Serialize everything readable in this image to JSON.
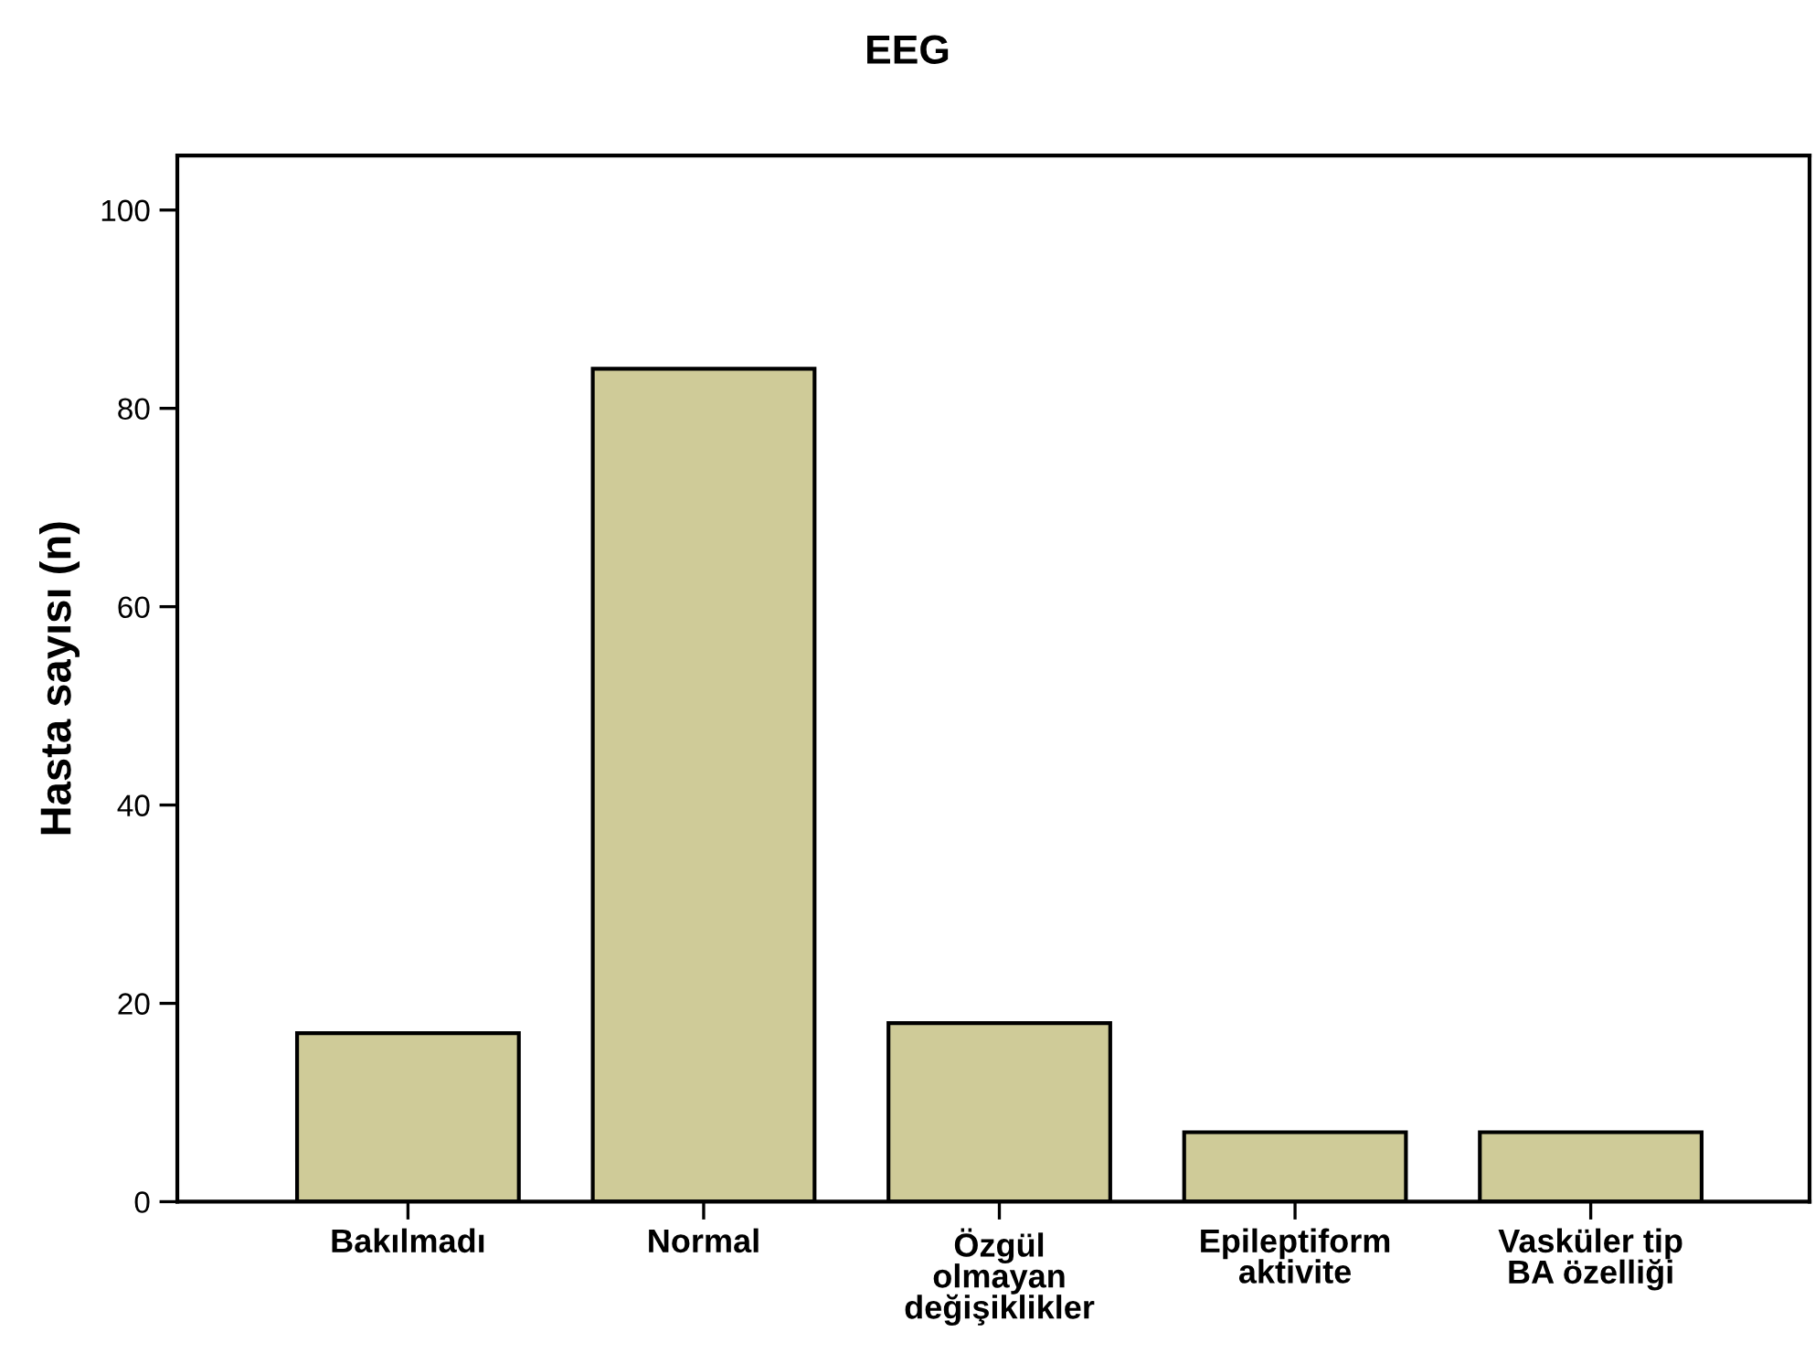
{
  "chart_data": {
    "type": "bar",
    "title": "EEG",
    "ylabel": "Hasta sayısı (n)",
    "categories": [
      "Bakılmadı",
      "Normal",
      "Özgül\nolmayan\ndeğişiklikler",
      "Epileptiform\naktivite",
      "Vasküler tip\nBA özelliği"
    ],
    "values": [
      17,
      84,
      18,
      7,
      7
    ],
    "color": "#cfcb98",
    "ylim": [
      0,
      105.5
    ],
    "yticks": [
      0,
      20,
      40,
      60,
      80,
      100
    ],
    "grid": false,
    "legend": false
  }
}
